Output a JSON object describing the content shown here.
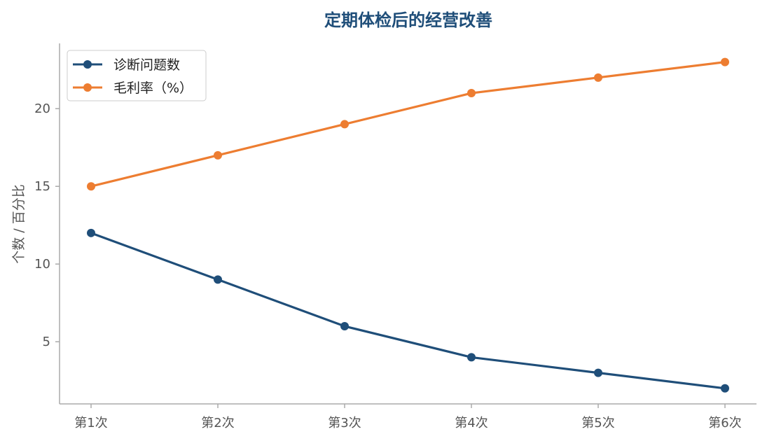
{
  "chart_data": {
    "type": "line",
    "title": "定期体检后的经营改善",
    "xlabel": "",
    "ylabel": "个数 / 百分比",
    "categories": [
      "第1次",
      "第2次",
      "第3次",
      "第4次",
      "第5次",
      "第6次"
    ],
    "series": [
      {
        "name": "诊断问题数",
        "values": [
          12,
          9,
          6,
          4,
          3,
          2
        ],
        "color": "#1f4e79"
      },
      {
        "name": "毛利率（%）",
        "values": [
          15,
          17,
          19,
          21,
          22,
          23
        ],
        "color": "#ed7d31"
      }
    ],
    "ylim": [
      1,
      24.2
    ],
    "yticks": [
      5,
      10,
      15,
      20
    ],
    "grid": false,
    "legend_position": "top-left"
  },
  "colors": {
    "title": "#1f4e79",
    "axis": "#aaaaaa",
    "tick_text": "#555555"
  }
}
